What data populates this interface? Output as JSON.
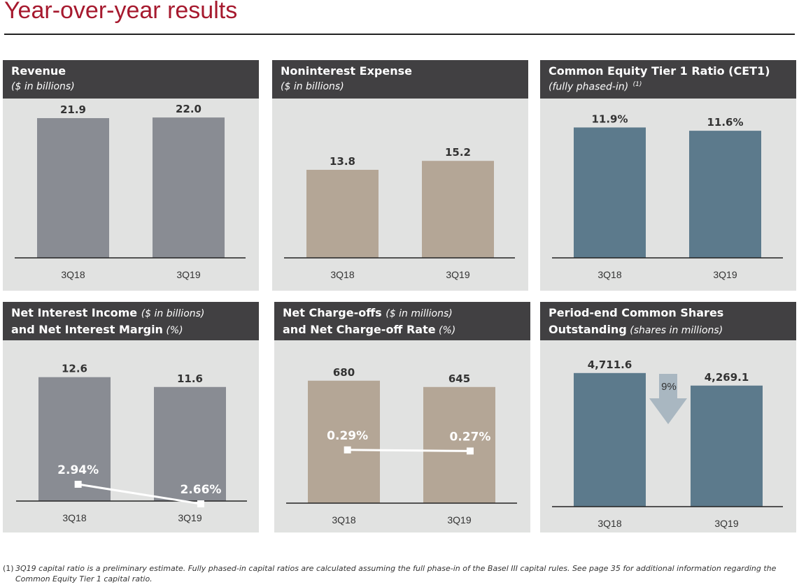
{
  "page_title": "Year-over-year results",
  "colors": {
    "title_red": "#a6192e",
    "gray_bar": "#898c93",
    "tan_bar": "#b4a696",
    "blue_bar": "#5c7a8c",
    "panel_bg": "#e1e2e1",
    "header_bg": "#414042"
  },
  "panels": [
    {
      "title": "Revenue",
      "subtitle": "($ in billions)"
    },
    {
      "title": "Noninterest Expense",
      "subtitle": "($ in billions)"
    },
    {
      "title": "Common Equity Tier 1 Ratio  (CET1)",
      "subtitle": "(fully phased-in)",
      "footnote_ref": "(1)"
    },
    {
      "title": "Net Interest Income",
      "title_unit": "($ in billions)",
      "subtitle": "and Net Interest Margin",
      "subtitle_unit": "(%)"
    },
    {
      "title": "Net Charge-offs",
      "title_unit": "($ in millions)",
      "subtitle": "and Net Charge-off Rate",
      "subtitle_unit": "(%)"
    },
    {
      "title": "Period-end Common Shares",
      "subtitle": "Outstanding",
      "subtitle_unit": "(shares in millions)"
    }
  ],
  "chart_data": [
    {
      "type": "bar",
      "categories": [
        "3Q18",
        "3Q19"
      ],
      "values": [
        21.9,
        22.0
      ],
      "data_labels": [
        "21.9",
        "22.0"
      ],
      "ylim": [
        0,
        23
      ]
    },
    {
      "type": "bar",
      "categories": [
        "3Q18",
        "3Q19"
      ],
      "values": [
        13.8,
        15.2
      ],
      "data_labels": [
        "13.8",
        "15.2"
      ],
      "ylim": [
        0,
        23
      ]
    },
    {
      "type": "bar",
      "categories": [
        "3Q18",
        "3Q19"
      ],
      "values": [
        11.9,
        11.6
      ],
      "data_labels": [
        "11.9%",
        "11.6%"
      ],
      "ylim": [
        0,
        12.5
      ]
    },
    {
      "type": "bar",
      "categories": [
        "3Q18",
        "3Q19"
      ],
      "values": [
        12.6,
        11.6
      ],
      "data_labels": [
        "12.6",
        "11.6"
      ],
      "ylim": [
        0,
        14
      ],
      "line_series": {
        "values": [
          2.94,
          2.66
        ],
        "data_labels": [
          "2.94%",
          "2.66%"
        ],
        "ylim": [
          2.0,
          3.5
        ]
      }
    },
    {
      "type": "bar",
      "categories": [
        "3Q18",
        "3Q19"
      ],
      "values": [
        680,
        645
      ],
      "data_labels": [
        "680",
        "645"
      ],
      "ylim": [
        0,
        780
      ],
      "line_series": {
        "values": [
          0.29,
          0.27
        ],
        "data_labels": [
          "0.29%",
          "0.27%"
        ],
        "ylim": [
          -1.0,
          2.0
        ]
      }
    },
    {
      "type": "bar",
      "categories": [
        "3Q18",
        "3Q19"
      ],
      "values": [
        4711.6,
        4269.1
      ],
      "data_labels": [
        "4,711.6",
        "4,269.1"
      ],
      "ylim": [
        0,
        5200
      ],
      "annotation": {
        "label": "9%"
      }
    }
  ],
  "footnote": {
    "marker": "(1)",
    "text": "3Q19 capital ratio is a preliminary estimate. Fully phased-in capital ratios are calculated assuming the full phase-in of the Basel III capital rules. See page 35 for additional information regarding the Common Equity Tier 1 capital ratio."
  }
}
